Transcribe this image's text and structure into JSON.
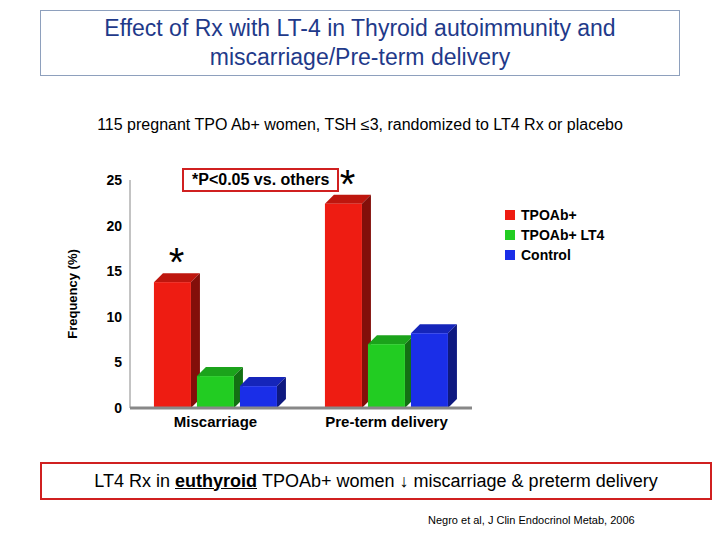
{
  "chart_data": {
    "type": "bar",
    "title": "Effect of Rx with LT-4 in Thyroid autoimmunity and miscarriage/Pre-term delivery",
    "subtitle": "115 pregnant TPO Ab+ women, TSH ≤3, randomized to LT4 Rx or placebo",
    "y_label": "Frequency (%)",
    "annotation": "*P<0.05 vs. others",
    "categories": [
      "Miscarriage",
      "Pre-term delivery"
    ],
    "series": [
      {
        "name": "TPOAb+",
        "color": "#ee1c12",
        "values": [
          13.8,
          22.4
        ],
        "annotations": [
          "*",
          "*"
        ]
      },
      {
        "name": "TPOAb+ LT4",
        "color": "#22cc22",
        "values": [
          3.5,
          7.0
        ]
      },
      {
        "name": "Control",
        "color": "#1a2ee8",
        "values": [
          2.4,
          8.2
        ]
      }
    ],
    "ylim": [
      0,
      25
    ],
    "yticks": [
      0,
      5,
      10,
      15,
      20,
      25
    ],
    "grid": false,
    "legend": "right",
    "conclusion": {
      "before": "LT4 Rx in",
      "emphasis": "euthyroid",
      "after": "TPOAb+ women ↓ miscarriage & preterm delivery"
    },
    "source": "Negro et al, J Clin Endocrinol Metab, 2006"
  }
}
